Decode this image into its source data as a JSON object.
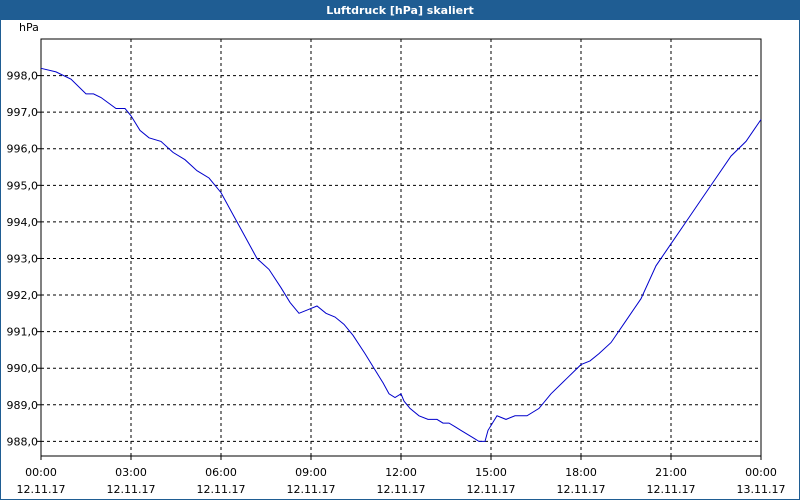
{
  "window": {
    "title": "Luftdruck [hPa] skaliert"
  },
  "colors": {
    "titlebar": "#1f5d93",
    "line": "#0000cc",
    "grid": "#000000"
  },
  "chart_data": {
    "type": "line",
    "title": "Luftdruck [hPa] skaliert",
    "xlabel": "",
    "ylabel": "hPa",
    "unit_label": "hPa",
    "xlim": [
      0,
      24
    ],
    "ylim": [
      987.6,
      999.0
    ],
    "grid": true,
    "y_ticks": [
      "988,0",
      "989,0",
      "990,0",
      "991,0",
      "992,0",
      "993,0",
      "994,0",
      "995,0",
      "996,0",
      "997,0",
      "998,0"
    ],
    "y_tick_values": [
      988,
      989,
      990,
      991,
      992,
      993,
      994,
      995,
      996,
      997,
      998
    ],
    "x_ticks": [
      {
        "time": "00:00",
        "date": "12.11.17"
      },
      {
        "time": "03:00",
        "date": "12.11.17"
      },
      {
        "time": "06:00",
        "date": "12.11.17"
      },
      {
        "time": "09:00",
        "date": "12.11.17"
      },
      {
        "time": "12:00",
        "date": "12.11.17"
      },
      {
        "time": "15:00",
        "date": "12.11.17"
      },
      {
        "time": "18:00",
        "date": "12.11.17"
      },
      {
        "time": "21:00",
        "date": "12.11.17"
      },
      {
        "time": "00:00",
        "date": "13.11.17"
      }
    ],
    "series": [
      {
        "points": [
          [
            0.0,
            998.2
          ],
          [
            0.5,
            998.1
          ],
          [
            1.0,
            997.9
          ],
          [
            1.5,
            997.5
          ],
          [
            1.75,
            997.5
          ],
          [
            2.0,
            997.4
          ],
          [
            2.5,
            997.1
          ],
          [
            2.8,
            997.1
          ],
          [
            3.0,
            996.9
          ],
          [
            3.3,
            996.5
          ],
          [
            3.6,
            996.3
          ],
          [
            4.0,
            996.2
          ],
          [
            4.4,
            995.9
          ],
          [
            4.8,
            995.7
          ],
          [
            5.2,
            995.4
          ],
          [
            5.6,
            995.2
          ],
          [
            6.0,
            994.8
          ],
          [
            6.4,
            994.2
          ],
          [
            6.8,
            993.6
          ],
          [
            7.2,
            993.0
          ],
          [
            7.6,
            992.7
          ],
          [
            8.0,
            992.2
          ],
          [
            8.3,
            991.8
          ],
          [
            8.6,
            991.5
          ],
          [
            8.9,
            991.6
          ],
          [
            9.2,
            991.7
          ],
          [
            9.5,
            991.5
          ],
          [
            9.8,
            991.4
          ],
          [
            10.1,
            991.2
          ],
          [
            10.4,
            990.9
          ],
          [
            10.8,
            990.4
          ],
          [
            11.1,
            990.0
          ],
          [
            11.4,
            989.6
          ],
          [
            11.6,
            989.3
          ],
          [
            11.8,
            989.2
          ],
          [
            12.0,
            989.3
          ],
          [
            12.1,
            989.1
          ],
          [
            12.3,
            988.9
          ],
          [
            12.6,
            988.7
          ],
          [
            12.9,
            988.6
          ],
          [
            13.2,
            988.6
          ],
          [
            13.4,
            988.5
          ],
          [
            13.6,
            988.5
          ],
          [
            13.8,
            988.4
          ],
          [
            14.0,
            988.3
          ],
          [
            14.2,
            988.2
          ],
          [
            14.4,
            988.1
          ],
          [
            14.6,
            988.0
          ],
          [
            14.8,
            988.0
          ],
          [
            14.9,
            988.3
          ],
          [
            15.2,
            988.7
          ],
          [
            15.5,
            988.6
          ],
          [
            15.8,
            988.7
          ],
          [
            16.2,
            988.7
          ],
          [
            16.6,
            988.9
          ],
          [
            17.0,
            989.3
          ],
          [
            17.5,
            989.7
          ],
          [
            18.0,
            990.1
          ],
          [
            18.3,
            990.2
          ],
          [
            18.6,
            990.4
          ],
          [
            19.0,
            990.7
          ],
          [
            19.5,
            991.3
          ],
          [
            20.0,
            991.9
          ],
          [
            20.5,
            992.8
          ],
          [
            21.0,
            993.4
          ],
          [
            21.5,
            994.0
          ],
          [
            22.0,
            994.6
          ],
          [
            22.5,
            995.2
          ],
          [
            23.0,
            995.8
          ],
          [
            23.5,
            996.2
          ],
          [
            24.0,
            996.8
          ]
        ]
      }
    ]
  }
}
